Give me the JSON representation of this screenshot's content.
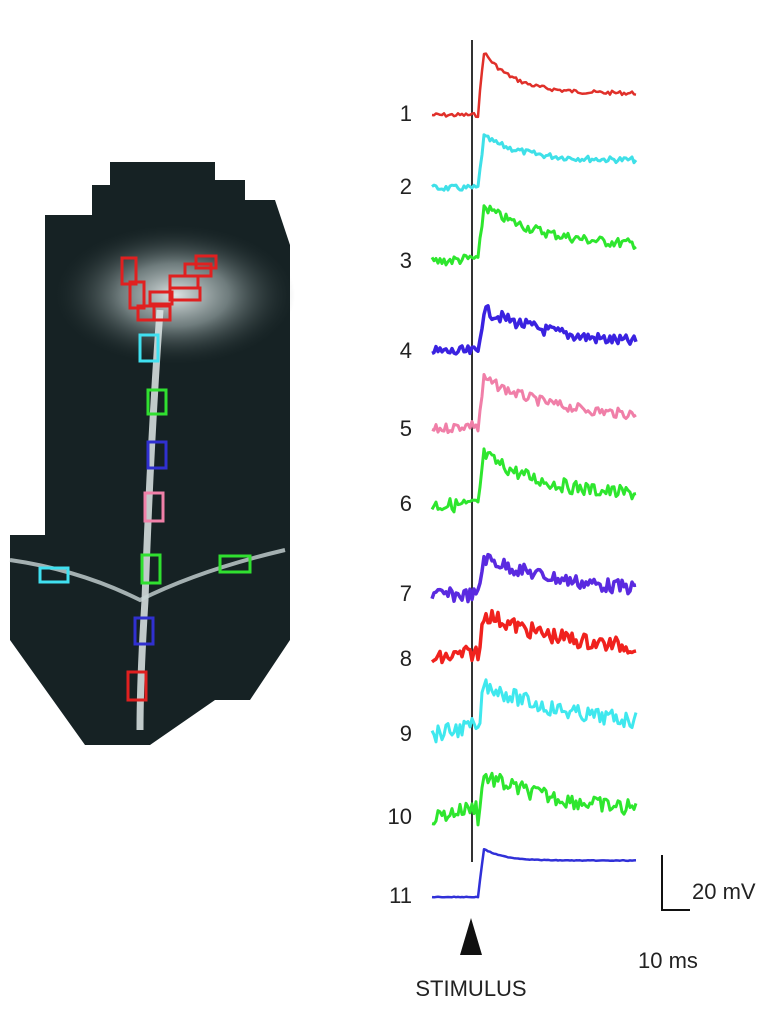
{
  "traces": [
    {
      "label": "1",
      "color": "#e0302a"
    },
    {
      "label": "2",
      "color": "#3fe0e8"
    },
    {
      "label": "3",
      "color": "#2ee62e"
    },
    {
      "label": "4",
      "color": "#3a22e0"
    },
    {
      "label": "5",
      "color": "#f07fa8"
    },
    {
      "label": "6",
      "color": "#2ee62e"
    },
    {
      "label": "7",
      "color": "#5a2ae0"
    },
    {
      "label": "8",
      "color": "#f0221e"
    },
    {
      "label": "9",
      "color": "#3fe8ee"
    },
    {
      "label": "10",
      "color": "#2ee62e"
    },
    {
      "label": "11",
      "color": "#3030d8"
    }
  ],
  "scale_bar": {
    "voltage": "20 mV",
    "time": "10 ms"
  },
  "stimulus": "STIMULUS"
}
